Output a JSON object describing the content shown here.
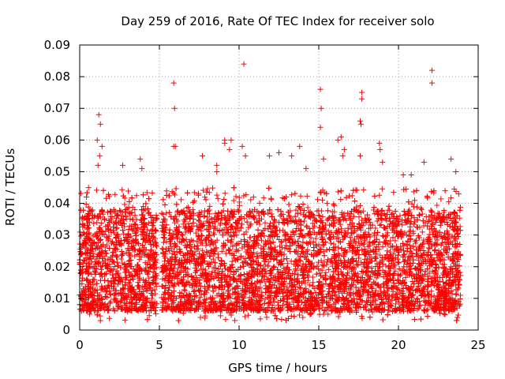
{
  "chart_data": {
    "type": "scatter",
    "title": "Day 259 of 2016, Rate Of TEC Index for receiver solo",
    "xlabel": "GPS time / hours",
    "ylabel": "ROTI / TECUs",
    "xlim": [
      0,
      25
    ],
    "ylim": [
      0,
      0.09
    ],
    "xticks": [
      0,
      5,
      10,
      15,
      20,
      25
    ],
    "xtick_labels": [
      "0",
      "5",
      "10",
      "15",
      "20",
      "25"
    ],
    "yticks": [
      0,
      0.01,
      0.02,
      0.03,
      0.04,
      0.05,
      0.06,
      0.07,
      0.08,
      0.09
    ],
    "ytick_labels": [
      "0",
      "0.01",
      "0.02",
      "0.03",
      "0.04",
      "0.05",
      "0.06",
      "0.07",
      "0.08",
      "0.09"
    ],
    "grid": true,
    "marker": "+",
    "marker_color": "#ff0000",
    "data_gaps_hours": [
      [
        4.85,
        5.15
      ]
    ],
    "bulk_series": {
      "name": "ROTI",
      "description": "dense cloud, roughly 0.005-0.04 TECU across the day",
      "x_range": [
        0,
        23.9
      ],
      "y_range": [
        0.003,
        0.045
      ],
      "points_per_hour": 280
    },
    "notable_points": [
      {
        "x": 1.2,
        "y": 0.068
      },
      {
        "x": 1.3,
        "y": 0.065
      },
      {
        "x": 1.1,
        "y": 0.06
      },
      {
        "x": 1.4,
        "y": 0.058
      },
      {
        "x": 1.25,
        "y": 0.055
      },
      {
        "x": 1.15,
        "y": 0.052
      },
      {
        "x": 2.7,
        "y": 0.052
      },
      {
        "x": 3.8,
        "y": 0.054
      },
      {
        "x": 3.9,
        "y": 0.051
      },
      {
        "x": 5.9,
        "y": 0.078
      },
      {
        "x": 5.95,
        "y": 0.07
      },
      {
        "x": 5.9,
        "y": 0.058
      },
      {
        "x": 6.0,
        "y": 0.058
      },
      {
        "x": 7.7,
        "y": 0.055
      },
      {
        "x": 8.6,
        "y": 0.052
      },
      {
        "x": 8.6,
        "y": 0.05
      },
      {
        "x": 9.1,
        "y": 0.06
      },
      {
        "x": 9.1,
        "y": 0.059
      },
      {
        "x": 9.5,
        "y": 0.06
      },
      {
        "x": 9.4,
        "y": 0.057
      },
      {
        "x": 10.3,
        "y": 0.084
      },
      {
        "x": 10.2,
        "y": 0.058
      },
      {
        "x": 10.4,
        "y": 0.055
      },
      {
        "x": 11.9,
        "y": 0.055
      },
      {
        "x": 12.5,
        "y": 0.056
      },
      {
        "x": 13.3,
        "y": 0.055
      },
      {
        "x": 13.8,
        "y": 0.058
      },
      {
        "x": 14.2,
        "y": 0.051
      },
      {
        "x": 15.1,
        "y": 0.076
      },
      {
        "x": 15.15,
        "y": 0.07
      },
      {
        "x": 15.1,
        "y": 0.064
      },
      {
        "x": 15.3,
        "y": 0.054
      },
      {
        "x": 16.2,
        "y": 0.06
      },
      {
        "x": 16.4,
        "y": 0.061
      },
      {
        "x": 16.6,
        "y": 0.057
      },
      {
        "x": 16.5,
        "y": 0.055
      },
      {
        "x": 17.7,
        "y": 0.075
      },
      {
        "x": 17.7,
        "y": 0.073
      },
      {
        "x": 17.6,
        "y": 0.066
      },
      {
        "x": 17.65,
        "y": 0.065
      },
      {
        "x": 17.6,
        "y": 0.055
      },
      {
        "x": 18.8,
        "y": 0.059
      },
      {
        "x": 18.85,
        "y": 0.057
      },
      {
        "x": 19.0,
        "y": 0.053
      },
      {
        "x": 20.3,
        "y": 0.049
      },
      {
        "x": 20.8,
        "y": 0.049
      },
      {
        "x": 21.6,
        "y": 0.053
      },
      {
        "x": 22.1,
        "y": 0.082
      },
      {
        "x": 22.1,
        "y": 0.078
      },
      {
        "x": 23.3,
        "y": 0.054
      },
      {
        "x": 23.6,
        "y": 0.05
      },
      {
        "x": 1.3,
        "y": 0.003
      },
      {
        "x": 14.0,
        "y": 0.004
      },
      {
        "x": 23.7,
        "y": 0.004
      }
    ]
  }
}
